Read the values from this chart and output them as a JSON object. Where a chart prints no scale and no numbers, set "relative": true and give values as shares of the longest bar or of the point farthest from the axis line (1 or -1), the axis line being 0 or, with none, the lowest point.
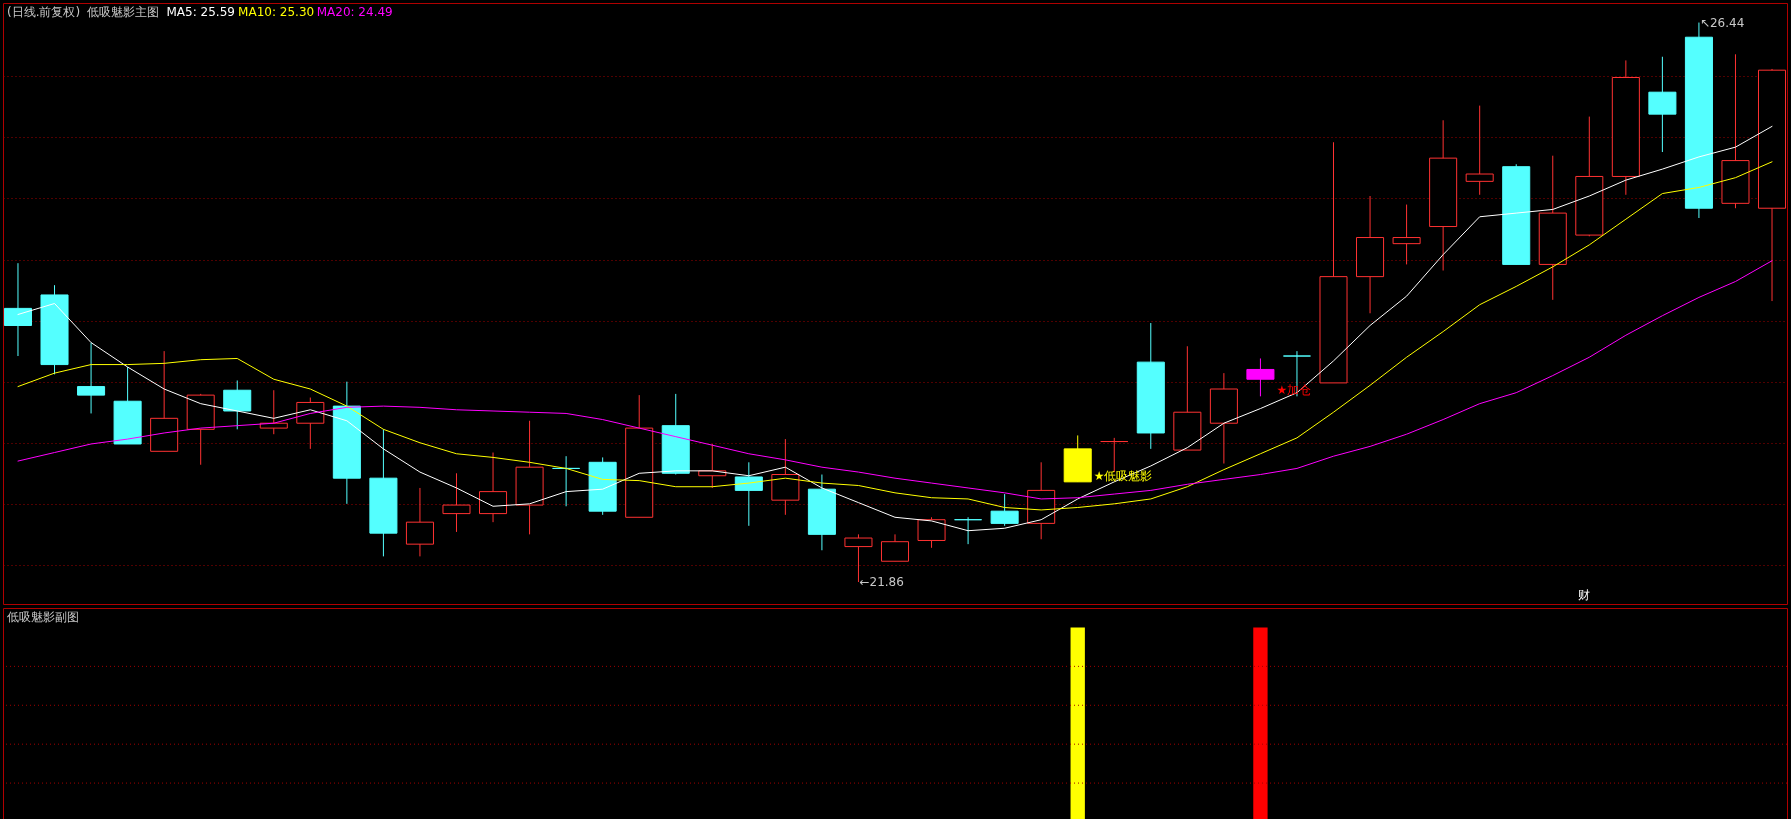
{
  "chart_data": [
    {
      "type": "candlestick",
      "title": "(日线.前复权)",
      "subtitle": "低吸魅影主图",
      "categories": [
        null,
        null,
        null,
        null,
        null,
        null,
        null,
        null,
        null,
        null,
        null,
        null,
        null,
        null,
        null,
        null,
        null,
        null,
        null,
        null,
        null,
        null,
        null,
        null,
        null,
        null,
        null,
        null,
        null,
        null,
        null,
        null,
        null,
        null,
        null,
        null,
        null,
        null,
        null,
        null,
        null,
        null,
        null,
        null,
        null,
        null,
        null,
        null,
        null
      ],
      "ohlc": [
        [
          24.1,
          24.47,
          23.71,
          23.96
        ],
        [
          24.21,
          24.29,
          23.56,
          23.64
        ],
        [
          23.46,
          23.82,
          23.24,
          23.39
        ],
        [
          23.34,
          23.62,
          22.99,
          22.99
        ],
        [
          22.93,
          23.75,
          22.93,
          23.2
        ],
        [
          23.11,
          23.4,
          22.82,
          23.39
        ],
        [
          23.43,
          23.51,
          23.11,
          23.26
        ],
        [
          23.12,
          23.43,
          23.07,
          23.16
        ],
        [
          23.16,
          23.37,
          22.95,
          23.33
        ],
        [
          23.3,
          23.5,
          22.5,
          22.71
        ],
        [
          22.71,
          23.11,
          22.07,
          22.26
        ],
        [
          22.17,
          22.63,
          22.07,
          22.35
        ],
        [
          22.42,
          22.75,
          22.27,
          22.49
        ],
        [
          22.42,
          22.92,
          22.35,
          22.6
        ],
        [
          22.49,
          23.18,
          22.25,
          22.8
        ],
        [
          22.79,
          22.89,
          22.48,
          22.79
        ],
        [
          22.84,
          22.88,
          22.41,
          22.44
        ],
        [
          22.39,
          23.39,
          22.39,
          23.12
        ],
        [
          23.14,
          23.4,
          22.74,
          22.75
        ],
        [
          22.73,
          22.99,
          22.63,
          22.77
        ],
        [
          22.72,
          22.84,
          22.32,
          22.61
        ],
        [
          22.53,
          23.03,
          22.41,
          22.74
        ],
        [
          22.62,
          22.74,
          22.12,
          22.25
        ],
        [
          22.15,
          22.25,
          21.86,
          22.22
        ],
        [
          22.03,
          22.25,
          22.03,
          22.19
        ],
        [
          22.2,
          22.39,
          22.14,
          22.37
        ],
        [
          22.37,
          22.39,
          22.17,
          22.37
        ],
        [
          22.44,
          22.58,
          22.32,
          22.34
        ],
        [
          22.34,
          22.84,
          22.21,
          22.61
        ],
        [
          22.68,
          23.06,
          22.68,
          22.95
        ],
        [
          23.01,
          23.04,
          22.76,
          23.01
        ],
        [
          23.66,
          23.98,
          22.95,
          23.08
        ],
        [
          22.94,
          23.79,
          22.94,
          23.25
        ],
        [
          23.16,
          23.57,
          22.83,
          23.44
        ],
        [
          23.52,
          23.69,
          23.38,
          23.6
        ],
        [
          23.71,
          23.75,
          23.38,
          23.71
        ],
        [
          23.49,
          25.46,
          23.49,
          24.36
        ],
        [
          24.36,
          25.02,
          24.06,
          24.68
        ],
        [
          24.63,
          24.95,
          24.46,
          24.68
        ],
        [
          24.77,
          25.64,
          24.41,
          25.33
        ],
        [
          25.14,
          25.76,
          25.03,
          25.2
        ],
        [
          25.26,
          25.28,
          24.46,
          24.46
        ],
        [
          24.46,
          25.35,
          24.17,
          24.88
        ],
        [
          24.7,
          25.67,
          24.69,
          25.18
        ],
        [
          25.18,
          26.13,
          25.03,
          25.99
        ],
        [
          25.87,
          26.16,
          25.38,
          25.69
        ],
        [
          26.32,
          26.44,
          24.84,
          24.92
        ],
        [
          24.96,
          26.18,
          24.92,
          25.31
        ],
        [
          24.92,
          26.06,
          24.16,
          26.05
        ]
      ],
      "colors": [
        "#54ffff",
        "#54ffff",
        "#54ffff",
        "#54ffff",
        "#ff3232",
        "#ff3232",
        "#54ffff",
        "#ff3232",
        "#ff3232",
        "#54ffff",
        "#54ffff",
        "#ff3232",
        "#ff3232",
        "#ff3232",
        "#ff3232",
        "#54ffff",
        "#54ffff",
        "#ff3232",
        "#54ffff",
        "#ff3232",
        "#54ffff",
        "#ff3232",
        "#54ffff",
        "#ff3232",
        "#ff3232",
        "#ff3232",
        "#54ffff",
        "#54ffff",
        "#ff3232",
        "#ffff00",
        "#ff3232",
        "#54ffff",
        "#ff3232",
        "#ff3232",
        "#ff00ff",
        "#54ffff",
        "#ff3232",
        "#ff3232",
        "#ff3232",
        "#ff3232",
        "#ff3232",
        "#54ffff",
        "#ff3232",
        "#ff3232",
        "#ff3232",
        "#54ffff",
        "#54ffff",
        "#ff3232",
        "#ff3232"
      ],
      "series": [
        {
          "name": "MA5: 25.59",
          "type": "line",
          "color": "#ffffff",
          "values": [
            24.05,
            24.14,
            23.82,
            23.62,
            23.44,
            23.32,
            23.26,
            23.2,
            23.27,
            23.18,
            22.95,
            22.76,
            22.63,
            22.48,
            22.5,
            22.6,
            22.62,
            22.75,
            22.77,
            22.77,
            22.73,
            22.8,
            22.63,
            22.51,
            22.39,
            22.36,
            22.28,
            22.3,
            22.37,
            22.54,
            22.68,
            22.81,
            22.96,
            23.16,
            23.28,
            23.41,
            23.67,
            23.96,
            24.2,
            24.54,
            24.85,
            24.88,
            24.91,
            25.02,
            25.15,
            25.24,
            25.34,
            25.42,
            25.59
          ]
        },
        {
          "name": "MA10: 25.30",
          "type": "line",
          "color": "#ffff00",
          "values": [
            23.46,
            23.57,
            23.64,
            23.64,
            23.65,
            23.68,
            23.69,
            23.52,
            23.44,
            23.3,
            23.11,
            23.0,
            22.91,
            22.88,
            22.84,
            22.79,
            22.7,
            22.69,
            22.64,
            22.64,
            22.67,
            22.71,
            22.67,
            22.65,
            22.59,
            22.55,
            22.54,
            22.47,
            22.45,
            22.47,
            22.5,
            22.54,
            22.64,
            22.78,
            22.91,
            23.04,
            23.25,
            23.47,
            23.7,
            23.91,
            24.13,
            24.28,
            24.44,
            24.62,
            24.83,
            25.04,
            25.09,
            25.17,
            25.3
          ]
        },
        {
          "name": "MA20: 24.49",
          "type": "line",
          "color": "#ff00ff",
          "values": [
            22.85,
            22.92,
            22.99,
            23.03,
            23.08,
            23.12,
            23.14,
            23.16,
            23.24,
            23.29,
            23.3,
            23.29,
            23.27,
            23.26,
            23.25,
            23.24,
            23.19,
            23.12,
            23.05,
            22.98,
            22.91,
            22.86,
            22.8,
            22.76,
            22.71,
            22.67,
            22.63,
            22.59,
            22.54,
            22.55,
            22.58,
            22.61,
            22.66,
            22.7,
            22.74,
            22.79,
            22.89,
            22.97,
            23.07,
            23.19,
            23.32,
            23.41,
            23.55,
            23.7,
            23.88,
            24.04,
            24.19,
            24.32,
            24.49
          ]
        }
      ],
      "ylim": [
        21.68,
        26.6
      ],
      "yticks": [
        {
          "value": 22,
          "label": null
        },
        {
          "value": 22.5,
          "label": null
        },
        {
          "value": 23,
          "label": null
        },
        {
          "value": 23.5,
          "label": null
        },
        {
          "value": 24,
          "label": null
        },
        {
          "value": 24.5,
          "label": null
        },
        {
          "value": 25,
          "label": null
        },
        {
          "value": 25.5,
          "label": null
        },
        {
          "value": 26,
          "label": null
        }
      ],
      "grid": "y",
      "legend": "top left",
      "tick_labels": false,
      "annotations": [
        "↖26.44",
        "←21.86",
        {
          "text": "★低吸魅影",
          "y": 22.68
        },
        {
          "text": "★加仓",
          "y": 23.38
        },
        "财"
      ]
    },
    {
      "type": "bar",
      "title": "低吸魅影副图",
      "relative": true,
      "tick_labels": false,
      "categories": [
        null,
        null,
        null,
        null,
        null,
        null,
        null,
        null,
        null,
        null,
        null,
        null,
        null,
        null,
        null,
        null,
        null,
        null,
        null,
        null,
        null,
        null,
        null,
        null,
        null,
        null,
        null,
        null,
        null,
        null,
        null,
        null,
        null,
        null,
        null,
        null,
        null,
        null,
        null,
        null,
        null,
        null,
        null,
        null,
        null,
        null,
        null,
        null,
        null
      ],
      "series": [
        {
          "color": "#ffff00",
          "values": [
            null,
            null,
            null,
            null,
            null,
            null,
            null,
            null,
            null,
            null,
            null,
            null,
            null,
            null,
            null,
            null,
            null,
            null,
            null,
            null,
            null,
            null,
            null,
            null,
            null,
            null,
            null,
            null,
            null,
            1,
            null,
            null,
            null,
            null,
            null,
            null,
            null,
            null,
            null,
            null,
            null,
            null,
            null,
            null,
            null,
            null,
            null,
            null,
            null
          ]
        },
        {
          "color": "#ff0000",
          "values": [
            null,
            null,
            null,
            null,
            null,
            null,
            null,
            null,
            null,
            null,
            null,
            null,
            null,
            null,
            null,
            null,
            null,
            null,
            null,
            null,
            null,
            null,
            null,
            null,
            null,
            null,
            null,
            null,
            null,
            null,
            null,
            null,
            null,
            null,
            1,
            null,
            null,
            null,
            null,
            null,
            null,
            null,
            null,
            null,
            null,
            null,
            null,
            null,
            null
          ]
        }
      ],
      "ref_lines": [
        {
          "axis": "y",
          "value": 0.2,
          "color": "#a00000",
          "line_style": "dotted"
        },
        {
          "axis": "y",
          "value": 0.4,
          "color": "#a00000",
          "line_style": "dotted"
        },
        {
          "axis": "y",
          "value": 0.6,
          "color": "#a00000",
          "line_style": "dotted"
        },
        {
          "axis": "y",
          "value": 0.8,
          "color": "#a00000",
          "line_style": "dotted"
        }
      ]
    }
  ]
}
